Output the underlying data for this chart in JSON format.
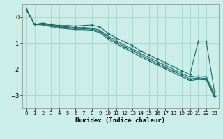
{
  "xlabel": "Humidex (Indice chaleur)",
  "background_color": "#cceee8",
  "grid_color": "#aad8d0",
  "line_color": "#1a6b6b",
  "xlim": [
    -0.5,
    23.5
  ],
  "ylim": [
    -3.5,
    0.5
  ],
  "yticks": [
    0,
    -1,
    -2,
    -3
  ],
  "xticks": [
    0,
    1,
    2,
    3,
    4,
    5,
    6,
    7,
    8,
    9,
    10,
    11,
    12,
    13,
    14,
    15,
    16,
    17,
    18,
    19,
    20,
    21,
    22,
    23
  ],
  "lines": [
    {
      "y": [
        0.3,
        -0.28,
        -0.22,
        -0.28,
        -0.32,
        -0.32,
        -0.34,
        -0.32,
        -0.3,
        -0.38,
        -0.62,
        -0.8,
        -0.95,
        -1.1,
        -1.3,
        -1.45,
        -1.6,
        -1.75,
        -1.9,
        -2.05,
        -2.2,
        -0.95,
        -0.95,
        -2.85
      ],
      "markers": true
    },
    {
      "y": [
        0.3,
        -0.28,
        -0.25,
        -0.3,
        -0.35,
        -0.37,
        -0.4,
        -0.4,
        -0.42,
        -0.5,
        -0.72,
        -0.9,
        -1.08,
        -1.22,
        -1.4,
        -1.55,
        -1.7,
        -1.85,
        -2.0,
        -2.15,
        -2.3,
        -2.25,
        -2.28,
        -2.95
      ],
      "markers": false
    },
    {
      "y": [
        0.3,
        -0.28,
        -0.28,
        -0.33,
        -0.38,
        -0.4,
        -0.44,
        -0.44,
        -0.46,
        -0.55,
        -0.78,
        -0.96,
        -1.14,
        -1.28,
        -1.46,
        -1.62,
        -1.77,
        -1.92,
        -2.07,
        -2.22,
        -2.37,
        -2.32,
        -2.35,
        -3.02
      ],
      "markers": true
    },
    {
      "y": [
        0.3,
        -0.28,
        -0.3,
        -0.36,
        -0.42,
        -0.45,
        -0.48,
        -0.48,
        -0.5,
        -0.6,
        -0.84,
        -1.02,
        -1.2,
        -1.35,
        -1.53,
        -1.68,
        -1.83,
        -1.98,
        -2.13,
        -2.28,
        -2.43,
        -2.38,
        -2.4,
        -3.08
      ],
      "markers": false
    }
  ]
}
